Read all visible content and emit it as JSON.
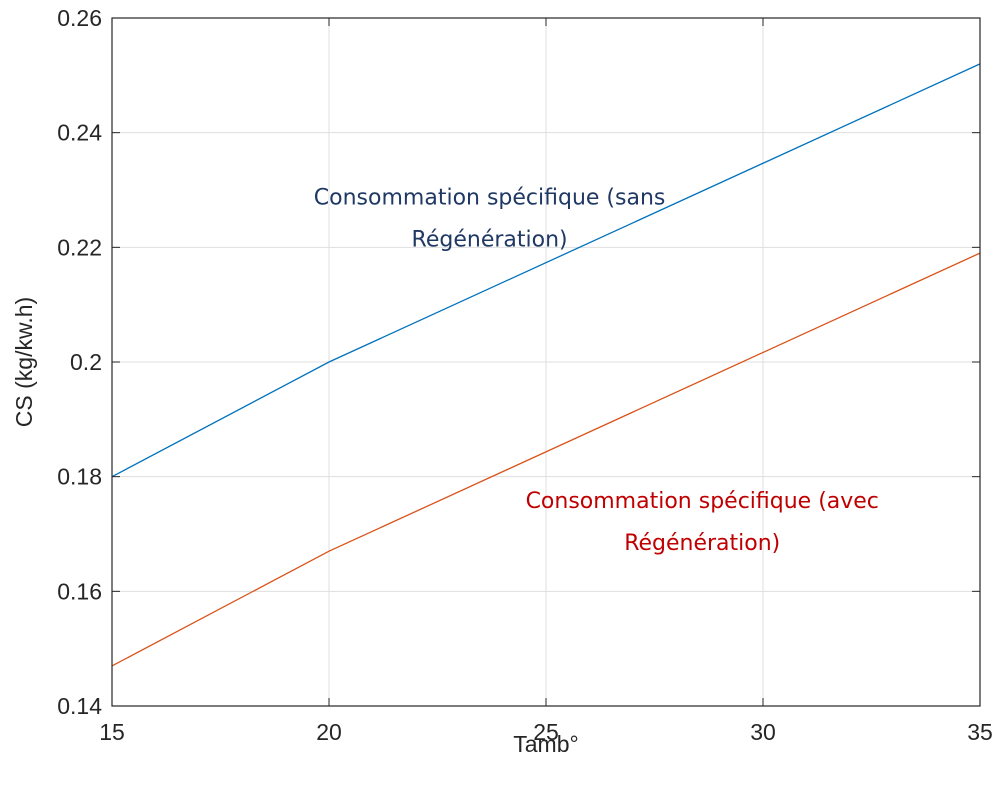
{
  "chart_data": {
    "type": "line",
    "title": "",
    "xlabel": "Tamb°",
    "ylabel": "CS (kg/kw.h)",
    "xlim": [
      15,
      35
    ],
    "ylim": [
      0.14,
      0.26
    ],
    "xticks": [
      15,
      20,
      25,
      30,
      35
    ],
    "xtick_labels": [
      "15",
      "20",
      "25",
      "30",
      "35"
    ],
    "yticks": [
      0.14,
      0.16,
      0.18,
      0.2,
      0.22,
      0.24,
      0.26
    ],
    "ytick_labels": [
      "0.14",
      "0.16",
      "0.18",
      "0.2",
      "0.22",
      "0.24",
      "0.26"
    ],
    "grid": true,
    "series": [
      {
        "color": "#0072BD",
        "x": [
          15,
          20,
          35
        ],
        "y": [
          0.18,
          0.2,
          0.252
        ]
      },
      {
        "color": "#D95319",
        "x": [
          15,
          20,
          35
        ],
        "y": [
          0.147,
          0.167,
          0.219
        ]
      }
    ],
    "annotations": [
      {
        "lines": [
          "Consommation spécifique (sans",
          "Régénération)"
        ],
        "color": "#1F3864",
        "x": 23.7,
        "y": 0.2275
      },
      {
        "lines": [
          "Consommation spécifique (avec",
          "Régénération)"
        ],
        "color": "#C00000",
        "x": 28.6,
        "y": 0.1745
      }
    ]
  }
}
